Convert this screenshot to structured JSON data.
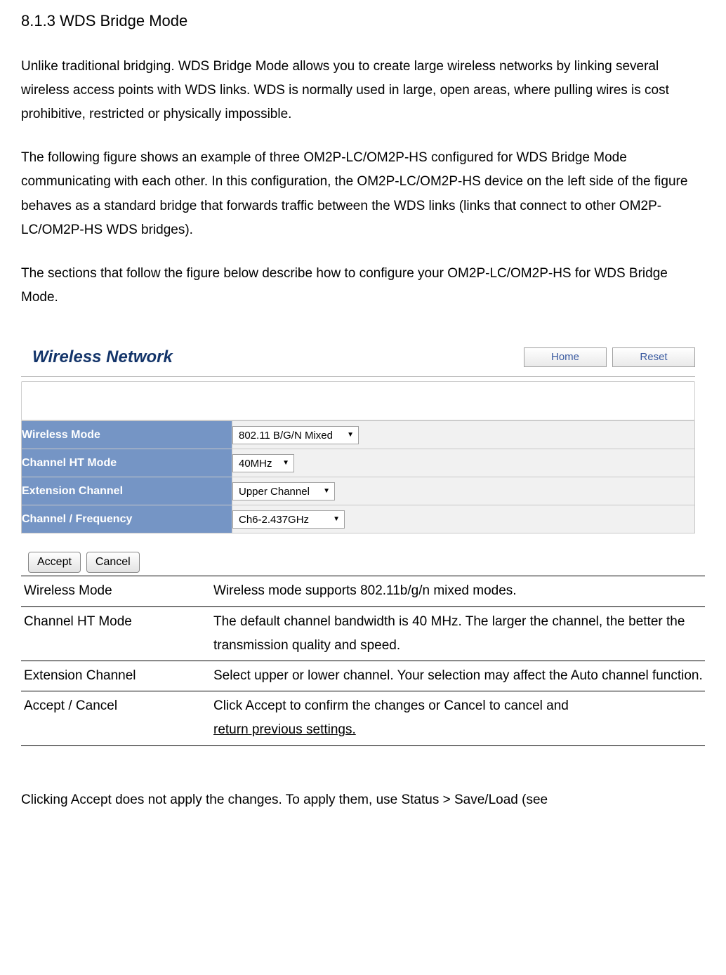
{
  "heading": "8.1.3 WDS Bridge Mode",
  "para1": "Unlike traditional bridging. WDS Bridge Mode allows you to create large wireless networks by linking several wireless access points with WDS links. WDS is normally used in large, open areas, where pulling wires is cost prohibitive, restricted or physically impossible.",
  "para2": "The following figure shows an example of three OM2P-LC/OM2P-HS configured for WDS Bridge Mode communicating with each other. In this configuration, the OM2P-LC/OM2P-HS device on the left side of the figure behaves as a standard bridge that forwards traffic between the WDS links (links that connect to other OM2P-LC/OM2P-HS WDS bridges).",
  "para3": "The sections that follow the figure below describe how to configure your OM2P-LC/OM2P-HS for WDS Bridge Mode.",
  "panel": {
    "title": "Wireless Network",
    "home_btn": "Home",
    "reset_btn": "Reset",
    "rows": {
      "wmode_label": "Wireless Mode",
      "wmode_value": "802.11 B/G/N Mixed",
      "ht_label": "Channel HT Mode",
      "ht_value": "40MHz",
      "ext_label": "Extension Channel",
      "ext_value": "Upper Channel",
      "chan_label": "Channel / Frequency",
      "chan_value": "Ch6-2.437GHz"
    },
    "accept_btn": "Accept",
    "cancel_btn": "Cancel"
  },
  "desc": {
    "r1_label": "Wireless Mode",
    "r1_text": "Wireless mode supports 802.11b/g/n mixed modes.",
    "r2_label": "Channel HT Mode",
    "r2_text": "The default channel bandwidth is 40 MHz. The larger the channel, the better the transmission quality and speed.",
    "r3_label": "Extension Channel",
    "r3_text": "Select upper or lower channel. Your selection may affect the Auto channel function.",
    "r4_label": "Accept / Cancel",
    "r4_text1": "Click Accept to confirm the changes or Cancel to cancel and",
    "r4_text2": "return previous settings."
  },
  "footer": "Clicking Accept does not apply the changes. To apply them, use Status > Save/Load (see"
}
